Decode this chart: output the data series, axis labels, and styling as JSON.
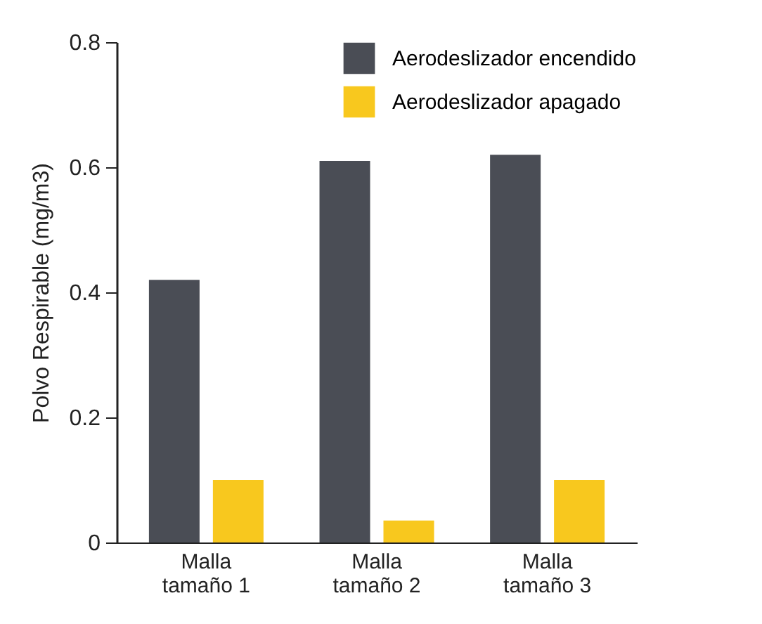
{
  "chart_data": {
    "type": "bar",
    "ylabel": "Polvo Respirable (mg/m3)",
    "categories": [
      "Malla tamaño 1",
      "Malla tamaño 2",
      "Malla tamaño 3"
    ],
    "series": [
      {
        "name": "Aerodeslizador encendido",
        "color": "#4a4d55",
        "values": [
          0.42,
          0.61,
          0.62
        ]
      },
      {
        "name": "Aerodeslizador apagado",
        "color": "#f8c81e",
        "values": [
          0.1,
          0.035,
          0.1
        ]
      }
    ],
    "ylim": [
      0,
      0.8
    ],
    "yticks": [
      0,
      0.2,
      0.4,
      0.6,
      0.8
    ],
    "grid": false,
    "legend": "top right"
  }
}
